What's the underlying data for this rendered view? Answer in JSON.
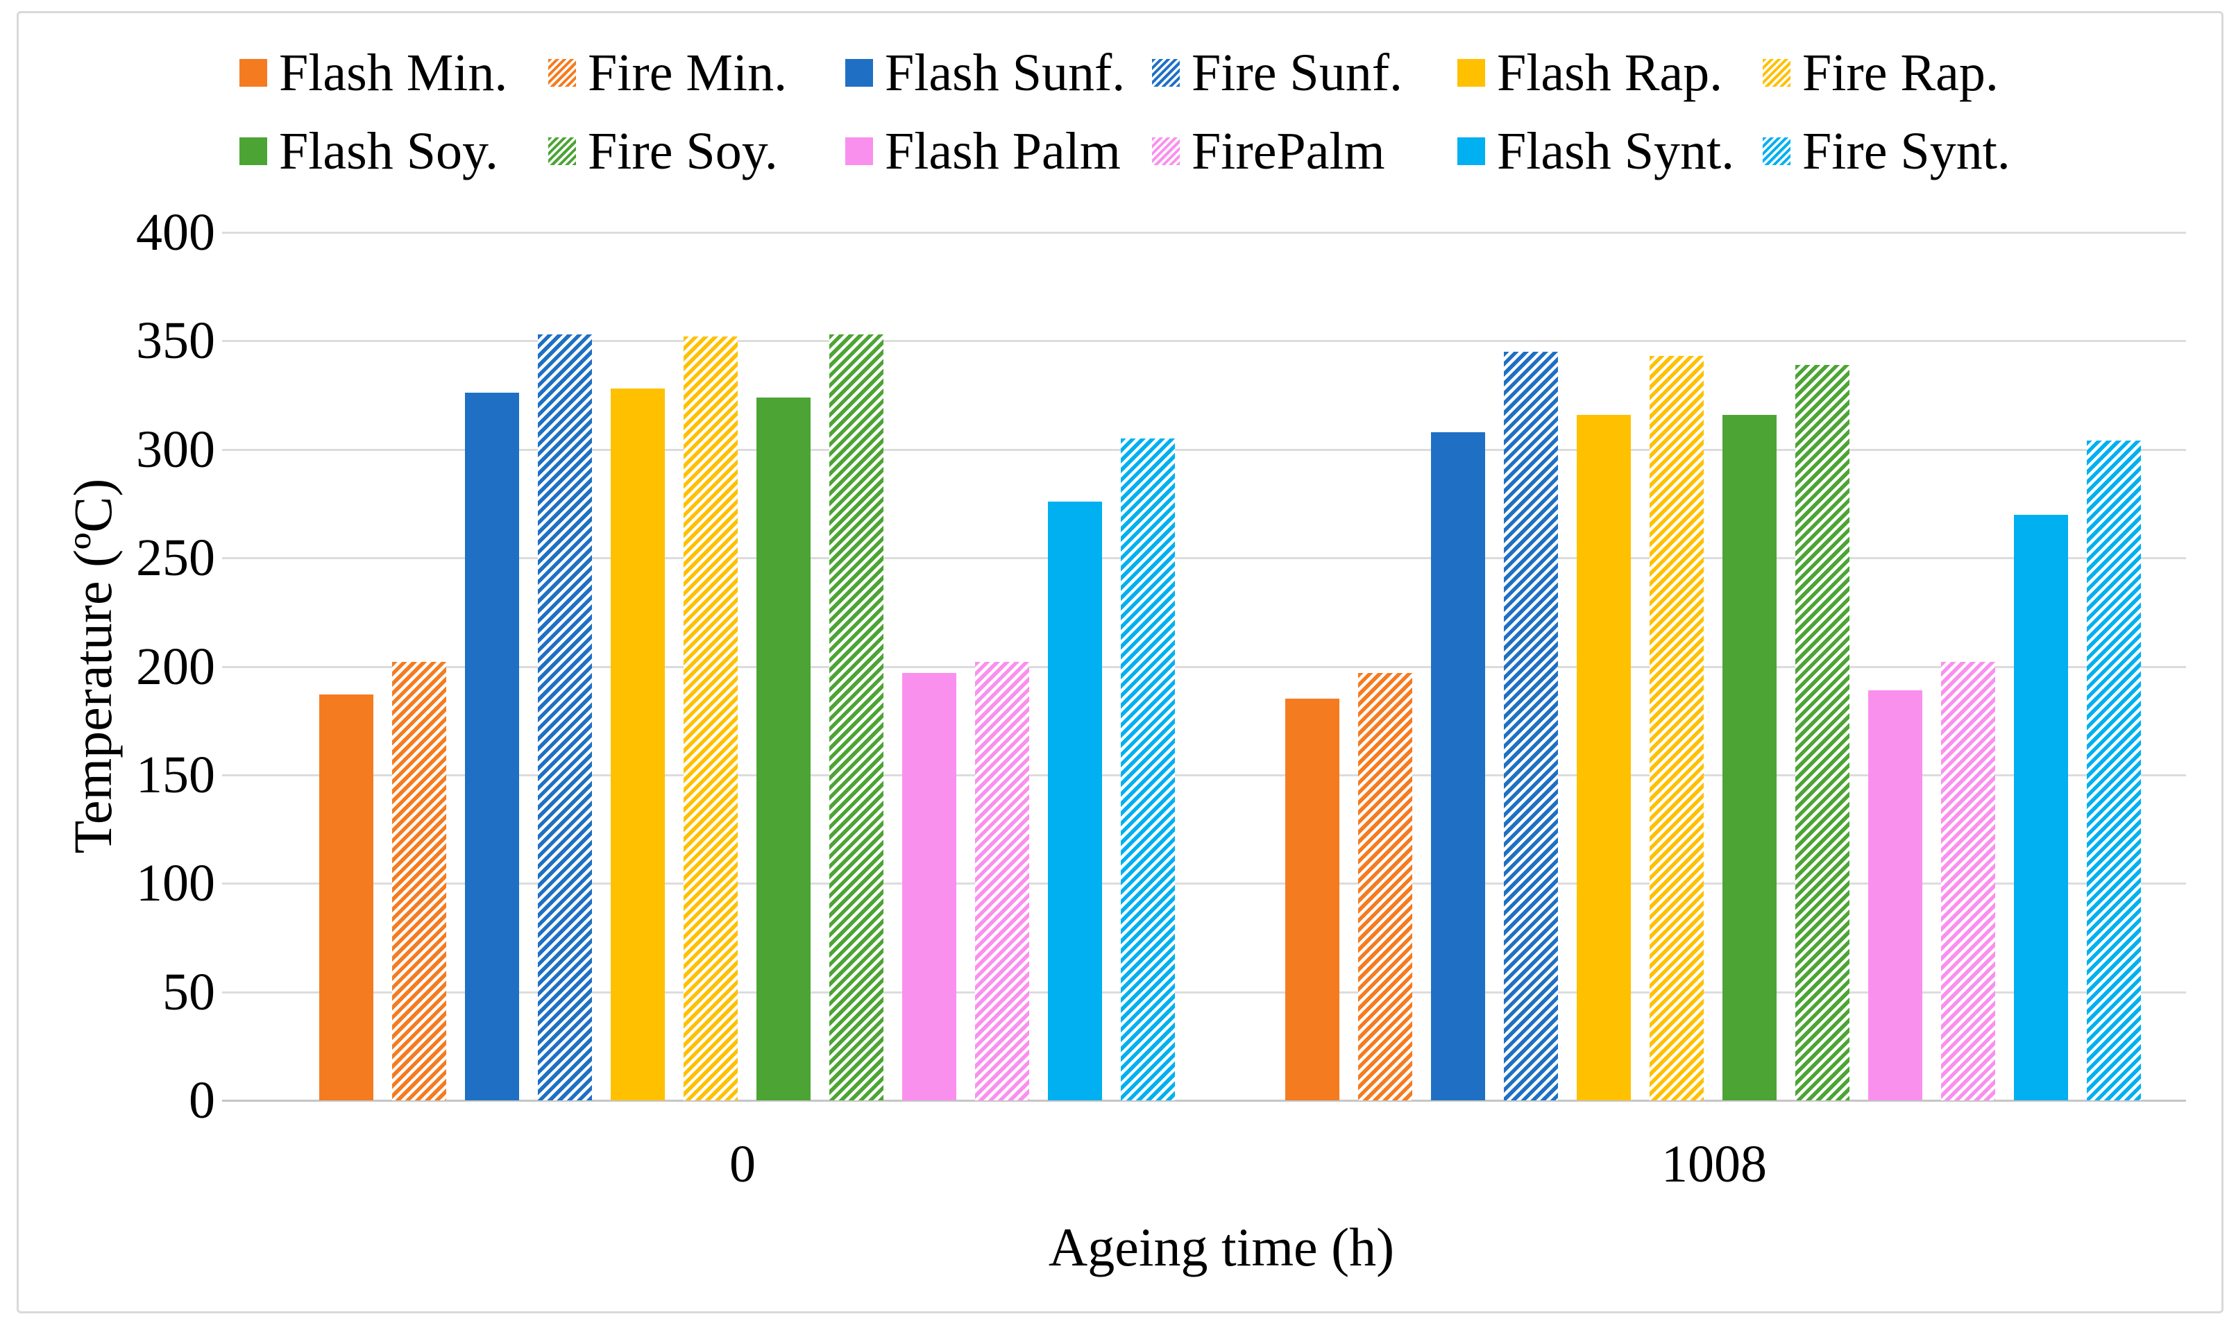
{
  "figure": {
    "background_color": "#ffffff",
    "border_color": "#d9d9d9",
    "gridline_color": "#dcdcdc",
    "baseline_color": "#c6c6c6",
    "text_color": "#000000"
  },
  "chart_data": {
    "type": "bar",
    "title": "",
    "xlabel": "Ageing time (h)",
    "ylabel": "Temperature (ºC)",
    "ylim": [
      0,
      400
    ],
    "yticks": [
      0,
      50,
      100,
      150,
      200,
      250,
      300,
      350,
      400
    ],
    "grid": true,
    "legend_position": "top",
    "legend_rows": 2,
    "categories": [
      "0",
      "1008"
    ],
    "series": [
      {
        "name": "Flash Min.",
        "color": "#f57b20",
        "pattern": "solid",
        "values": [
          187,
          185
        ]
      },
      {
        "name": "Fire Min.",
        "color": "#f57b20",
        "pattern": "hatch",
        "values": [
          202,
          197
        ]
      },
      {
        "name": "Flash Sunf.",
        "color": "#1f70c4",
        "pattern": "solid",
        "values": [
          326,
          308
        ]
      },
      {
        "name": "Fire Sunf.",
        "color": "#1f70c4",
        "pattern": "hatch",
        "values": [
          353,
          345
        ]
      },
      {
        "name": "Flash Rap.",
        "color": "#ffc000",
        "pattern": "solid",
        "values": [
          328,
          316
        ]
      },
      {
        "name": "Fire Rap.",
        "color": "#ffc000",
        "pattern": "hatch",
        "values": [
          352,
          343
        ]
      },
      {
        "name": "Flash Soy.",
        "color": "#4ca434",
        "pattern": "solid",
        "values": [
          324,
          316
        ]
      },
      {
        "name": "Fire Soy.",
        "color": "#4ca434",
        "pattern": "hatch",
        "values": [
          353,
          339
        ]
      },
      {
        "name": "Flash Palm",
        "color": "#fa90ee",
        "pattern": "solid",
        "values": [
          197,
          189
        ]
      },
      {
        "name": "FirePalm",
        "color": "#fa90ee",
        "pattern": "hatch",
        "values": [
          202,
          202
        ]
      },
      {
        "name": "Flash Synt.",
        "color": "#00b0f0",
        "pattern": "solid",
        "values": [
          276,
          270
        ]
      },
      {
        "name": "Fire Synt.",
        "color": "#00b0f0",
        "pattern": "hatch",
        "values": [
          305,
          304
        ]
      }
    ]
  }
}
